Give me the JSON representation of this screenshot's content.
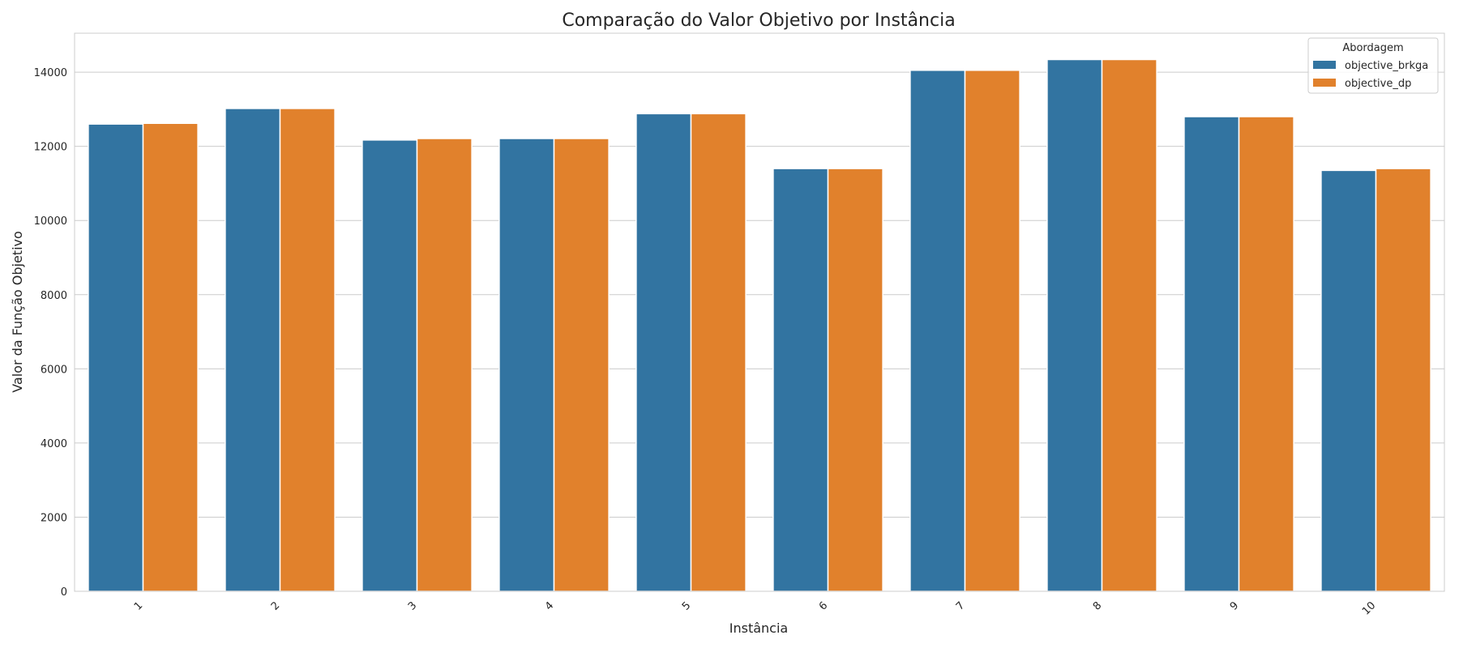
{
  "chart_data": {
    "type": "bar",
    "title": "Comparação do Valor Objetivo por Instância",
    "xlabel": "Instância",
    "ylabel": "Valor da Função Objetivo",
    "categories": [
      "1",
      "2",
      "3",
      "4",
      "5",
      "6",
      "7",
      "8",
      "9",
      "10"
    ],
    "series": [
      {
        "name": "objective_brkga",
        "color": "#3274a1",
        "values": [
          12600,
          13020,
          12170,
          12210,
          12880,
          11400,
          14050,
          14340,
          12800,
          11350
        ]
      },
      {
        "name": "objective_dp",
        "color": "#e1812c",
        "values": [
          12620,
          13020,
          12210,
          12210,
          12880,
          11400,
          14050,
          14340,
          12800,
          11400
        ]
      }
    ],
    "ylim": [
      0,
      15050
    ],
    "yticks": [
      0,
      2000,
      4000,
      6000,
      8000,
      10000,
      12000,
      14000
    ],
    "grid": true,
    "legend": {
      "title": "Abordagem",
      "placement": "top-right"
    }
  }
}
